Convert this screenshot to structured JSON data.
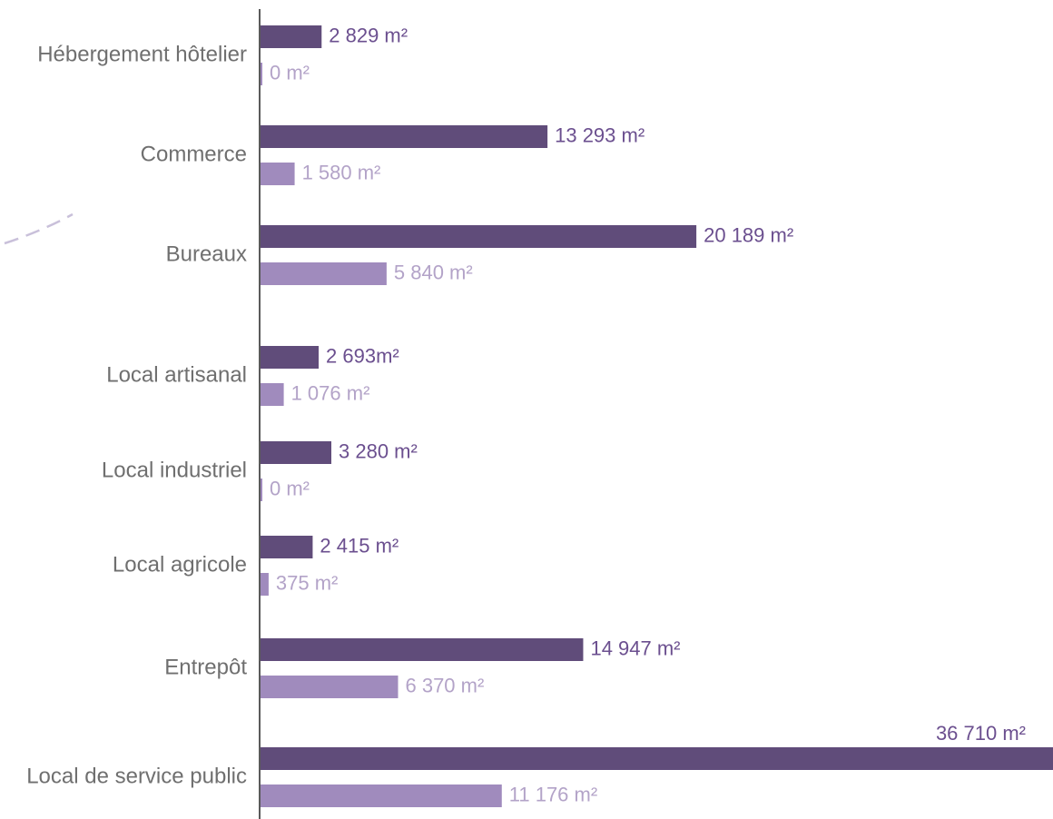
{
  "chart_data": {
    "type": "bar",
    "orientation": "horizontal",
    "categories": [
      "Hébergement hôtelier",
      "Commerce",
      "Bureaux",
      "Local artisanal",
      "Local industriel",
      "Local agricole",
      "Entrepôt",
      "Local de service public"
    ],
    "series": [
      {
        "values": [
          2829,
          13293,
          20189,
          2693,
          3280,
          2415,
          14947,
          36710
        ],
        "labels": [
          "2 829 m²",
          "13 293 m²",
          "20 189 m²",
          "2 693m²",
          "3 280 m²",
          "2 415 m²",
          "14 947 m²",
          "36 710 m²"
        ],
        "color": "#604c7a",
        "label_color": "#6b4f8f"
      },
      {
        "values": [
          0,
          1580,
          5840,
          1076,
          0,
          375,
          6370,
          11176
        ],
        "labels": [
          "0 m²",
          "1 580 m²",
          "5 840 m²",
          "1 076 m²",
          "0 m²",
          "375 m²",
          "6 370 m²",
          "11 176 m²"
        ],
        "color": "#a08bbd",
        "label_color": "#b3a3c8"
      }
    ],
    "xlim": [
      0,
      36710
    ],
    "grid": false,
    "axis_color": "#5a5a5a",
    "decoration_color": "#c9c0da"
  }
}
